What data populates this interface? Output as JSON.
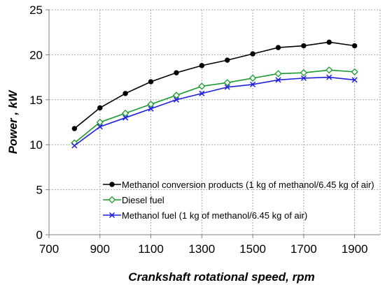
{
  "chart_data": {
    "type": "line",
    "title": "",
    "xlabel": "Crankshaft rotational speed, rpm",
    "ylabel": "Power , kW",
    "xlim": [
      700,
      2000
    ],
    "ylim": [
      0,
      25
    ],
    "x_ticks": [
      700,
      900,
      1100,
      1300,
      1500,
      1700,
      1900
    ],
    "y_ticks": [
      0,
      5,
      10,
      15,
      20,
      25
    ],
    "grid": true,
    "legend_position": "bottom-right",
    "x": [
      800,
      900,
      1000,
      1100,
      1200,
      1300,
      1400,
      1500,
      1600,
      1700,
      1800,
      1900
    ],
    "series": [
      {
        "name": "Methanol conversion products (1 kg of methanol/6.45 kg of air)",
        "color": "#000000",
        "marker": "circle",
        "values": [
          11.8,
          14.1,
          15.7,
          17.0,
          18.0,
          18.8,
          19.4,
          20.1,
          20.8,
          21.0,
          21.4,
          21.0
        ]
      },
      {
        "name": "Diesel fuel",
        "color": "#1a9a2e",
        "marker": "diamond",
        "values": [
          10.2,
          12.5,
          13.5,
          14.5,
          15.5,
          16.5,
          16.9,
          17.4,
          17.9,
          18.0,
          18.3,
          18.1
        ]
      },
      {
        "name": "Methanol fuel (1 kg of methanol/6.45 kg of air)",
        "color": "#1f1fe0",
        "marker": "x",
        "values": [
          9.9,
          12.0,
          13.0,
          14.0,
          15.0,
          15.7,
          16.4,
          16.7,
          17.2,
          17.4,
          17.5,
          17.2
        ]
      }
    ]
  }
}
